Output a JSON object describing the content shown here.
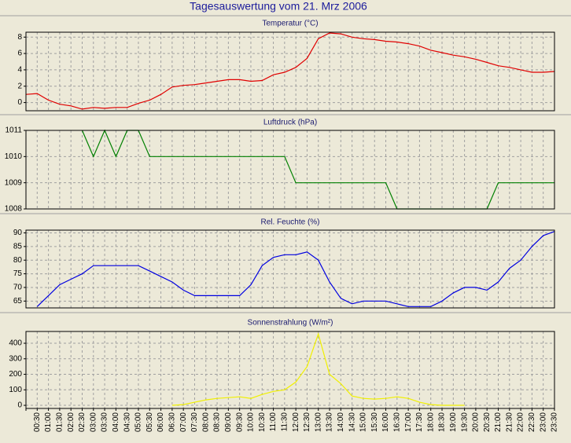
{
  "title": "Tagesauswertung vom 21. Mrz 2006",
  "chart_data": [
    {
      "type": "line",
      "title": "Temperatur (°C)",
      "color": "#e00000",
      "grid": true,
      "ylim": [
        -1,
        8.6
      ],
      "yticks": [
        0,
        2,
        4,
        6,
        8
      ],
      "values": [
        1.0,
        1.1,
        0.3,
        -0.2,
        -0.4,
        -0.8,
        -0.6,
        -0.7,
        -0.6,
        -0.6,
        -0.1,
        0.3,
        1.0,
        1.9,
        2.1,
        2.2,
        2.4,
        2.6,
        2.8,
        2.8,
        2.6,
        2.7,
        3.4,
        3.7,
        4.3,
        5.4,
        7.8,
        8.5,
        8.4,
        8.0,
        7.8,
        7.7,
        7.5,
        7.4,
        7.2,
        6.9,
        6.4,
        6.1,
        5.8,
        5.6,
        5.3,
        4.9,
        4.5,
        4.3,
        4.0,
        3.7,
        3.7,
        3.8
      ]
    },
    {
      "type": "line",
      "title": "Luftdruck (hPa)",
      "color": "#008000",
      "grid": true,
      "ylim": [
        1008,
        1011
      ],
      "yticks": [
        1008,
        1009,
        1010,
        1011
      ],
      "values": [
        null,
        null,
        null,
        null,
        null,
        1011,
        1010,
        1011,
        1010,
        1011,
        1011,
        1010,
        1010,
        1010,
        1010,
        1010,
        1010,
        1010,
        1010,
        1010,
        1010,
        1010,
        1010,
        1010,
        1009,
        1009,
        1009,
        1009,
        1009,
        1009,
        1009,
        1009,
        1009,
        1008,
        1008,
        1008,
        1008,
        1008,
        1008,
        1008,
        1008,
        1008,
        1009,
        1009,
        1009,
        1009,
        1009,
        1009
      ]
    },
    {
      "type": "line",
      "title": "Rel. Feuchte (%)",
      "color": "#0000e0",
      "grid": true,
      "ylim": [
        62.5,
        91
      ],
      "yticks": [
        65,
        70,
        75,
        80,
        85,
        90
      ],
      "values": [
        null,
        63,
        67,
        71,
        73,
        75,
        78,
        78,
        78,
        78,
        78,
        76,
        74,
        72,
        69,
        67,
        67,
        67,
        67,
        67,
        71,
        78,
        81,
        82,
        82,
        83,
        80,
        72,
        66,
        64,
        65,
        65,
        65,
        64,
        63,
        63,
        63,
        65,
        68,
        70,
        70,
        69,
        72,
        77,
        80,
        85,
        89,
        90.5
      ]
    },
    {
      "type": "line",
      "title": "Sonnenstrahlung (W/m²)",
      "color": "#f0f000",
      "grid": true,
      "ylim": [
        -20,
        476
      ],
      "yticks": [
        0,
        100,
        200,
        300,
        400
      ],
      "categories": [
        null,
        "00:30",
        "01:00",
        "01:30",
        "02:00",
        "02:30",
        "03:00",
        "03:30",
        "04:00",
        "04:30",
        "05:00",
        "05:30",
        "06:00",
        "06:30",
        "07:00",
        "07:30",
        "08:00",
        "08:30",
        "09:00",
        "09:30",
        "10:00",
        "10:30",
        "11:00",
        "11:30",
        "12:00",
        "12:30",
        "13:00",
        "13:30",
        "14:00",
        "14:30",
        "15:00",
        "15:30",
        "16:00",
        "16:30",
        "17:00",
        "17:30",
        "18:00",
        "18:30",
        "19:00",
        "19:30",
        "20:00",
        "20:30",
        "21:00",
        "21:30",
        "22:00",
        "22:30",
        "23:00",
        "23:30"
      ],
      "values": [
        null,
        null,
        null,
        null,
        null,
        null,
        null,
        null,
        null,
        null,
        null,
        null,
        null,
        0,
        5,
        20,
        35,
        45,
        50,
        55,
        45,
        70,
        90,
        100,
        150,
        250,
        460,
        200,
        140,
        60,
        45,
        40,
        45,
        55,
        45,
        20,
        5,
        0,
        0,
        0,
        null,
        null,
        null,
        null,
        null,
        null,
        null,
        null
      ]
    }
  ]
}
